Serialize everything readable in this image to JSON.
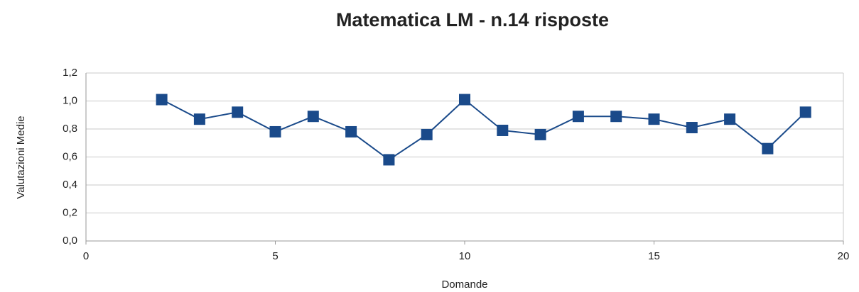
{
  "chart_data": {
    "type": "line",
    "title": "Matematica LM - n.14 risposte",
    "xlabel": "Domande",
    "ylabel": "Valutazioni Medie",
    "x": [
      2,
      3,
      4,
      5,
      6,
      7,
      8,
      9,
      10,
      11,
      12,
      13,
      14,
      15,
      16,
      17,
      18,
      19
    ],
    "series": [
      {
        "name": "Valutazioni Medie",
        "color": "#1a4a8a",
        "values": [
          1.01,
          0.87,
          0.92,
          0.78,
          0.89,
          0.78,
          0.58,
          0.76,
          1.01,
          0.79,
          0.76,
          0.89,
          0.89,
          0.87,
          0.81,
          0.87,
          0.66,
          0.92
        ]
      }
    ],
    "xlim": [
      0,
      20
    ],
    "xticks": [
      0,
      5,
      10,
      15,
      20
    ],
    "ylim": [
      0,
      1.2
    ],
    "yticks": [
      {
        "value": 0,
        "label": "0,0"
      },
      {
        "value": 0.2,
        "label": "0,2"
      },
      {
        "value": 0.4,
        "label": "0,4"
      },
      {
        "value": 0.6,
        "label": "0,6"
      },
      {
        "value": 0.8,
        "label": "0,8"
      },
      {
        "value": 1.0,
        "label": "1,0"
      },
      {
        "value": 1.2,
        "label": "1,2"
      }
    ],
    "grid": true
  }
}
